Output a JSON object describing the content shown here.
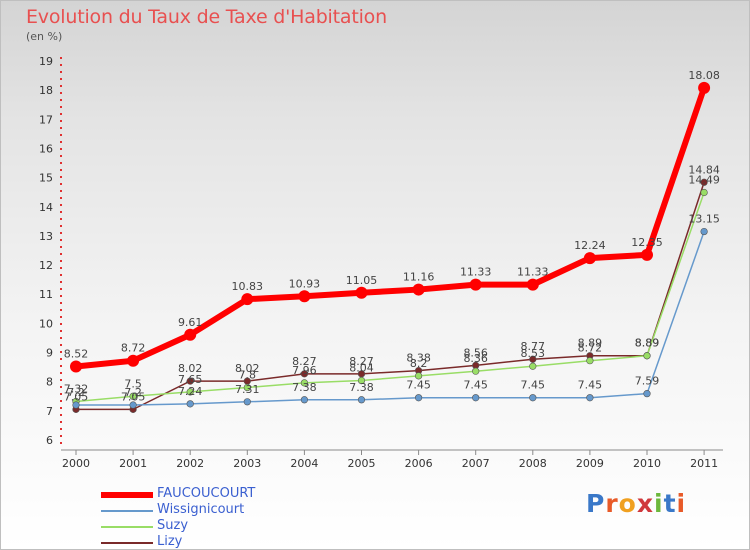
{
  "page": {
    "title": "Evolution du Taux de Taxe d'Habitation",
    "subtitle": "(en %)"
  },
  "logo": {
    "text": "Proxiti",
    "letters": [
      "P",
      "r",
      "o",
      "x",
      "i",
      "t",
      "i"
    ],
    "colors": [
      "#3a78c8",
      "#e85a28",
      "#f0a020",
      "#d0383c",
      "#6db83c",
      "#3a78c8",
      "#e85a28"
    ]
  },
  "chart_data": {
    "type": "line",
    "title": "Evolution du Taux de Taxe d'Habitation",
    "ylabel": "(en %)",
    "xlabel": "",
    "ylim": [
      6,
      19
    ],
    "yticks": [
      "6",
      "7",
      "8",
      "9",
      "10",
      "11",
      "12",
      "13",
      "14",
      "15",
      "16",
      "17",
      "18",
      "19"
    ],
    "categories": [
      "2000",
      "2001",
      "2002",
      "2003",
      "2004",
      "2005",
      "2006",
      "2007",
      "2008",
      "2009",
      "2010",
      "2011"
    ],
    "series": [
      {
        "name": "FAUCOUCOURT",
        "color": "#ff0000",
        "values": [
          8.52,
          8.72,
          9.61,
          10.83,
          10.93,
          11.05,
          11.16,
          11.33,
          11.33,
          12.24,
          12.35,
          18.08
        ],
        "labels": [
          "8.52",
          "8.72",
          "9.61",
          "10.83",
          "10.93",
          "11.05",
          "11.16",
          "11.33",
          "11.33",
          "12.24",
          "12.35",
          "18.08"
        ]
      },
      {
        "name": "Wissignicourt",
        "color": "#6699cc",
        "values": [
          7.2,
          7.2,
          7.24,
          7.31,
          7.38,
          7.38,
          7.45,
          7.45,
          7.45,
          7.45,
          7.59,
          13.15
        ],
        "labels": [
          "7.2",
          "7.2",
          "7.24",
          "7.31",
          "7.38",
          "7.38",
          "7.45",
          "7.45",
          "7.45",
          "7.45",
          "7.59",
          "13.15"
        ]
      },
      {
        "name": "Suzy",
        "color": "#99dd66",
        "values": [
          7.32,
          7.5,
          7.65,
          7.8,
          7.96,
          8.04,
          8.2,
          8.36,
          8.53,
          8.72,
          8.89,
          14.49
        ],
        "labels": [
          "7.32",
          "7.5",
          "7.65",
          "7.8",
          "7.96",
          "8.04",
          "8.2",
          "8.36",
          "8.53",
          "8.72",
          "8.89",
          "14.49"
        ]
      },
      {
        "name": "Lizy",
        "color": "#7a2a2a",
        "values": [
          7.05,
          7.05,
          8.02,
          8.02,
          8.27,
          8.27,
          8.38,
          8.56,
          8.77,
          8.89,
          8.89,
          14.84
        ],
        "labels": [
          "7.05",
          "7.05",
          "8.02",
          "8.02",
          "8.27",
          "8.27",
          "8.38",
          "8.56",
          "8.77",
          "8.89",
          "8.89",
          "14.84"
        ]
      }
    ],
    "legend_position": "bottom-left"
  }
}
